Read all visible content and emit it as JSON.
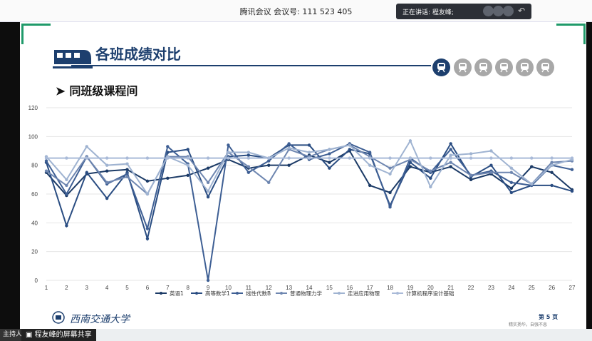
{
  "meeting": {
    "title": "腾讯会议 会议号: 111 523 405",
    "speaking": "正在讲话: 程友峰;"
  },
  "slide": {
    "title": "各班成绩对比",
    "subtitle": "同班级课程间",
    "university": "西南交通大学",
    "page": "第 5 页",
    "motto": "精实扬华，自强不息"
  },
  "bottom": {
    "host_label": "主持人",
    "share_label": "程友峰的屏幕共享"
  },
  "colors": {
    "accent": "#1d3f6e",
    "frame": "#1f9a6a"
  },
  "nav_icons": [
    "train-icon",
    "train-icon",
    "train-icon",
    "train-icon",
    "train-icon",
    "train-icon"
  ],
  "chart_data": {
    "type": "line",
    "x": [
      1,
      2,
      3,
      4,
      5,
      6,
      7,
      8,
      9,
      10,
      11,
      12,
      13,
      14,
      15,
      16,
      17,
      18,
      19,
      20,
      21,
      22,
      23,
      24,
      25,
      26,
      27
    ],
    "ylim": [
      0,
      120
    ],
    "yticks": [
      0,
      20,
      40,
      60,
      80,
      100,
      120
    ],
    "grid": true,
    "legend_position": "bottom",
    "series": [
      {
        "name": "英语1",
        "color": "#1b3a66",
        "values": [
          75,
          59,
          74,
          76,
          77,
          69,
          71,
          73,
          78,
          84,
          78,
          80,
          80,
          87,
          82,
          90,
          66,
          61,
          79,
          75,
          79,
          70,
          74,
          64,
          79,
          75,
          63
        ]
      },
      {
        "name": "高等数学1",
        "color": "#2a4d82",
        "values": [
          82,
          38,
          75,
          57,
          75,
          29,
          89,
          91,
          58,
          86,
          87,
          85,
          94,
          94,
          78,
          91,
          88,
          52,
          82,
          71,
          95,
          72,
          80,
          61,
          66,
          66,
          62
        ]
      },
      {
        "name": "线性代数B",
        "color": "#3e5f94",
        "values": [
          83,
          60,
          86,
          67,
          74,
          36,
          93,
          81,
          0,
          94,
          75,
          83,
          95,
          84,
          88,
          95,
          89,
          51,
          85,
          75,
          91,
          73,
          76,
          68,
          66,
          80,
          77
        ]
      },
      {
        "name": "普通物理力学",
        "color": "#6e86b0",
        "values": [
          76,
          66,
          86,
          68,
          72,
          60,
          86,
          86,
          68,
          89,
          79,
          68,
          91,
          86,
          91,
          94,
          86,
          78,
          84,
          76,
          82,
          73,
          75,
          75,
          67,
          82,
          83
        ]
      },
      {
        "name": "走进应用物理",
        "color": "#9fb3d1",
        "values": [
          86,
          70,
          93,
          80,
          81,
          60,
          86,
          80,
          62,
          89,
          89,
          85,
          92,
          89,
          91,
          94,
          80,
          74,
          97,
          65,
          87,
          88,
          90,
          78,
          67,
          80,
          84
        ]
      },
      {
        "name": "计算机程序设计基础",
        "color": "#a9bad8",
        "values": [
          85,
          85,
          85,
          85,
          85,
          85,
          85,
          85,
          85,
          85,
          85,
          85,
          85,
          85,
          85,
          85,
          85,
          85,
          85,
          85,
          85,
          85,
          85,
          85,
          85,
          85,
          85
        ]
      }
    ]
  }
}
